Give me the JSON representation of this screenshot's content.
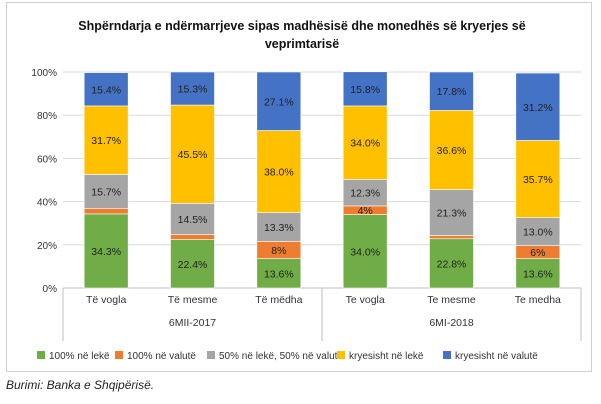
{
  "chart_data": {
    "type": "bar",
    "stacked": true,
    "title": "Shpërndarja e ndërmarrjeve sipas madhësisë dhe monedhës së kryerjes së veprimtarisë",
    "categories": [
      "Të vogla",
      "Të mesme",
      "Të mëdha",
      "Te vogla",
      "Te mesme",
      "Te medha"
    ],
    "groups": [
      {
        "label": "6MII-2017",
        "categories": [
          0,
          1,
          2
        ]
      },
      {
        "label": "6MI-2018",
        "categories": [
          3,
          4,
          5
        ]
      }
    ],
    "y_ticks": [
      "0%",
      "20%",
      "40%",
      "60%",
      "80%",
      "100%"
    ],
    "ylim": [
      0,
      100
    ],
    "legend_position": "bottom",
    "series": [
      {
        "name": "100% në lekë",
        "color": "#70ad47",
        "values": [
          34.3,
          22.4,
          13.6,
          34.0,
          22.8,
          13.6
        ],
        "labels": [
          "34.3%",
          "22.4%",
          "13.6%",
          "34.0%",
          "22.8%",
          "13.6%"
        ]
      },
      {
        "name": "100% në valutë",
        "color": "#ed7d31",
        "values": [
          2.6,
          2.3,
          8.0,
          4.0,
          1.5,
          6.0
        ],
        "labels": [
          "",
          "",
          "8%",
          "4%",
          "",
          "6%"
        ]
      },
      {
        "name": "50% në lekë, 50% në valutë",
        "color": "#a5a5a5",
        "values": [
          15.7,
          14.5,
          13.3,
          12.3,
          21.3,
          13.0
        ],
        "labels": [
          "15.7%",
          "14.5%",
          "13.3%",
          "12.3%",
          "21.3%",
          "13.0%"
        ]
      },
      {
        "name": "kryesisht në lekë",
        "color": "#ffc000",
        "values": [
          31.7,
          45.5,
          38.0,
          34.0,
          36.6,
          35.7
        ],
        "labels": [
          "31.7%",
          "45.5%",
          "38.0%",
          "34.0%",
          "36.6%",
          "35.7%"
        ]
      },
      {
        "name": "kryesisht në valutë",
        "color": "#4472c4",
        "values": [
          15.4,
          15.3,
          27.1,
          15.8,
          17.8,
          31.2
        ],
        "labels": [
          "15.4%",
          "15.3%",
          "27.1%",
          "15.8%",
          "17.8%",
          "31.2%"
        ]
      }
    ]
  },
  "source": "Burimi: Banka e Shqipërisë."
}
